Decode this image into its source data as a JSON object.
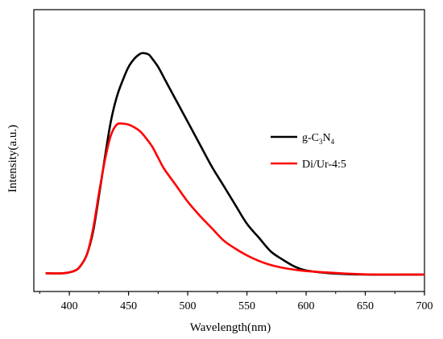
{
  "chart_data": {
    "type": "line",
    "title": "",
    "xlabel": "Wavelength(nm)",
    "ylabel": "Intensity(a.u.)",
    "xlim": [
      370,
      700
    ],
    "ylim": [
      0,
      1
    ],
    "y_ticks_labeled": false,
    "x_ticks": [
      400,
      450,
      500,
      550,
      600,
      650,
      700
    ],
    "x_tick_labels": [
      "400",
      "450",
      "500",
      "550",
      "600",
      "650",
      "700"
    ],
    "grid": false,
    "legend_position": "right-middle",
    "series": [
      {
        "name": "g-C3N4",
        "legend_main": "g-C",
        "legend_sub1": "3",
        "legend_mid": "N",
        "legend_sub2": "4",
        "color": "#000000",
        "x": [
          380,
          395,
          405,
          410,
          415,
          420,
          425,
          430,
          435,
          440,
          445,
          450,
          455,
          460,
          463,
          467,
          470,
          475,
          480,
          490,
          500,
          510,
          520,
          530,
          540,
          550,
          560,
          570,
          580,
          590,
          600,
          620,
          650,
          700
        ],
        "y": [
          0.02,
          0.02,
          0.03,
          0.05,
          0.09,
          0.17,
          0.3,
          0.44,
          0.57,
          0.66,
          0.72,
          0.77,
          0.8,
          0.818,
          0.82,
          0.815,
          0.8,
          0.77,
          0.73,
          0.65,
          0.57,
          0.49,
          0.41,
          0.34,
          0.27,
          0.2,
          0.15,
          0.1,
          0.07,
          0.045,
          0.03,
          0.02,
          0.015,
          0.015
        ]
      },
      {
        "name": "Di/Ur-4:5",
        "color": "#ff0000",
        "x": [
          380,
          395,
          405,
          410,
          415,
          420,
          425,
          430,
          435,
          440,
          445,
          450,
          455,
          460,
          465,
          470,
          475,
          480,
          490,
          500,
          510,
          520,
          530,
          540,
          550,
          560,
          570,
          580,
          590,
          600,
          620,
          650,
          700
        ],
        "y": [
          0.02,
          0.02,
          0.03,
          0.05,
          0.09,
          0.18,
          0.31,
          0.43,
          0.52,
          0.56,
          0.564,
          0.56,
          0.55,
          0.535,
          0.51,
          0.48,
          0.44,
          0.4,
          0.34,
          0.28,
          0.23,
          0.185,
          0.14,
          0.11,
          0.085,
          0.065,
          0.05,
          0.04,
          0.033,
          0.028,
          0.022,
          0.016,
          0.015
        ]
      }
    ]
  }
}
